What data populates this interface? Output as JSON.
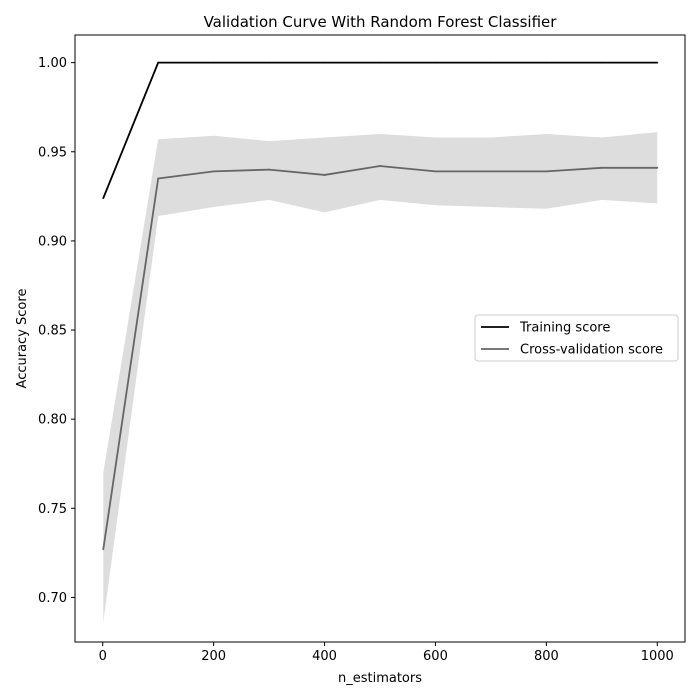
{
  "chart_data": {
    "type": "line",
    "title": "Validation Curve With Random Forest Classifier",
    "xlabel": "n_estimators",
    "ylabel": "Accuracy Score",
    "xlim": [
      -50,
      1050
    ],
    "ylim": [
      0.675,
      1.0155
    ],
    "xticks": [
      0,
      200,
      400,
      600,
      800,
      1000
    ],
    "xtick_labels": [
      "0",
      "200",
      "400",
      "600",
      "800",
      "1000"
    ],
    "yticks": [
      0.7,
      0.75,
      0.8,
      0.85,
      0.9,
      0.95,
      1.0
    ],
    "ytick_labels": [
      "0.70",
      "0.75",
      "0.80",
      "0.85",
      "0.90",
      "0.95",
      "1.00"
    ],
    "grid": false,
    "legend_position": "center-right",
    "x": [
      1,
      100,
      200,
      300,
      400,
      500,
      600,
      700,
      800,
      900,
      1000
    ],
    "series": [
      {
        "name": "Training score",
        "color": "#000000",
        "values": [
          0.924,
          1.0,
          1.0,
          1.0,
          1.0,
          1.0,
          1.0,
          1.0,
          1.0,
          1.0,
          1.0
        ]
      },
      {
        "name": "Cross-validation score",
        "color": "#666666",
        "values": [
          0.727,
          0.935,
          0.939,
          0.94,
          0.937,
          0.942,
          0.939,
          0.939,
          0.939,
          0.941,
          0.941
        ],
        "band_lower": [
          0.686,
          0.914,
          0.919,
          0.923,
          0.916,
          0.923,
          0.92,
          0.919,
          0.918,
          0.923,
          0.921
        ],
        "band_upper": [
          0.77,
          0.957,
          0.959,
          0.956,
          0.958,
          0.96,
          0.958,
          0.958,
          0.96,
          0.958,
          0.961
        ],
        "band_color": "#dddddd"
      }
    ]
  }
}
